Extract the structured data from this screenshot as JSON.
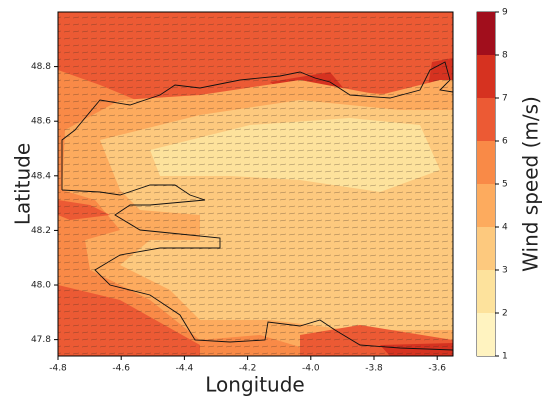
{
  "chart_data": {
    "type": "contour",
    "xlabel": "Longitude",
    "ylabel": "Latitude",
    "colorbar_label": "Wind speed (m/s)",
    "xlim": [
      -4.8,
      -3.55
    ],
    "ylim": [
      47.74,
      49.0
    ],
    "xticks": [
      -4.8,
      -4.6,
      -4.4,
      -4.2,
      {
        "value": -4.0,
        "label": "-4.0"
      },
      -3.8,
      -3.6
    ],
    "yticks": [
      47.8,
      {
        "value": 48.0,
        "label": "48.0"
      },
      48.2,
      48.4,
      48.6,
      48.8
    ],
    "colorbar_ticks": [
      1,
      2,
      3,
      4,
      5,
      6,
      7,
      8,
      9
    ],
    "colors": [
      "#fff3c0",
      "#fde29c",
      "#fdc97e",
      "#fdab5e",
      "#f98a47",
      "#ec5a34",
      "#d63220",
      "#a10e1c"
    ]
  }
}
